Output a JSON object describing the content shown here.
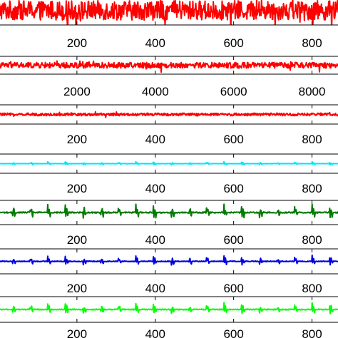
{
  "chart_data": [
    {
      "type": "line",
      "color": "#ff0000",
      "pattern": "noise",
      "amp": 0.95,
      "xlim": [
        0,
        870
      ],
      "x_ticks": [
        200,
        400,
        600,
        800
      ],
      "tick_labels": [
        "200",
        "400",
        "600",
        "800"
      ],
      "grid": false,
      "legend": "none"
    },
    {
      "type": "line",
      "color": "#ff0000",
      "pattern": "noise",
      "amp": 0.45,
      "xlim": [
        0,
        8700
      ],
      "x_ticks": [
        2000,
        4000,
        6000,
        8000
      ],
      "tick_labels": [
        "2000",
        "4000",
        "6000",
        "8000"
      ],
      "grid": false,
      "legend": "none"
    },
    {
      "type": "line",
      "color": "#ff0000",
      "pattern": "noise",
      "amp": 0.2,
      "xlim": [
        0,
        870
      ],
      "x_ticks": [
        200,
        400,
        600,
        800
      ],
      "tick_labels": [
        "200",
        "400",
        "600",
        "800"
      ],
      "grid": false,
      "legend": "none"
    },
    {
      "type": "line",
      "color": "#00e5ff",
      "pattern": "beats",
      "amp": 0.25,
      "xlim": [
        0,
        870
      ],
      "x_ticks": [
        200,
        400,
        600,
        800
      ],
      "tick_labels": [
        "200",
        "400",
        "600",
        "800"
      ],
      "grid": false,
      "legend": "none"
    },
    {
      "type": "line",
      "color": "#007a00",
      "pattern": "beats",
      "amp": 0.85,
      "xlim": [
        0,
        870
      ],
      "x_ticks": [
        200,
        400,
        600,
        800
      ],
      "tick_labels": [
        "200",
        "400",
        "600",
        "800"
      ],
      "grid": false,
      "legend": "none"
    },
    {
      "type": "line",
      "color": "#0000e0",
      "pattern": "beats",
      "amp": 0.55,
      "xlim": [
        0,
        870
      ],
      "x_ticks": [
        200,
        400,
        600,
        800
      ],
      "tick_labels": [
        "200",
        "400",
        "600",
        "800"
      ],
      "grid": false,
      "legend": "none"
    },
    {
      "type": "line",
      "color": "#00ff00",
      "pattern": "beats",
      "amp": 0.6,
      "xlim": [
        0,
        870
      ],
      "x_ticks": [
        200,
        400,
        600,
        800
      ],
      "tick_labels": [
        "200",
        "400",
        "600",
        "800"
      ],
      "grid": false,
      "legend": "none"
    }
  ]
}
